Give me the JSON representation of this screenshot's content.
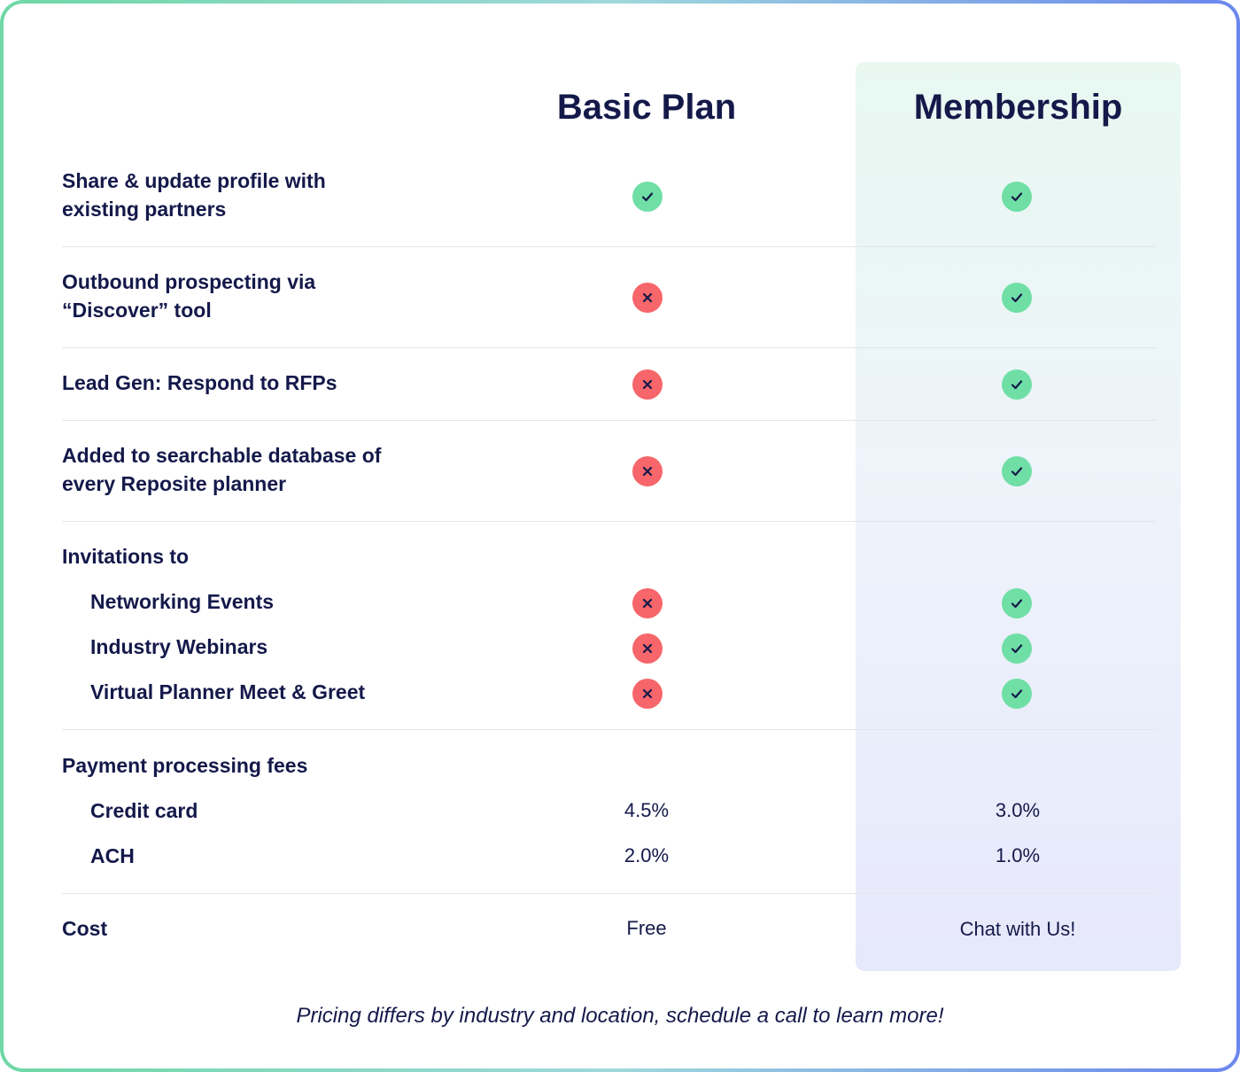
{
  "colors": {
    "check": "#70dfa5",
    "cross": "#f7666a",
    "text": "#14194a",
    "membership_bg_top": "#e8f8f1",
    "membership_bg_bottom": "#e6e8fb"
  },
  "columns": {
    "basic": "Basic Plan",
    "membership": "Membership"
  },
  "rows": {
    "share_profile": {
      "label_line1": "Share & update profile with",
      "label_line2": "existing partners",
      "basic": "check-icon",
      "membership": "check-icon"
    },
    "outbound": {
      "label_line1": "Outbound prospecting via",
      "label_line2": "“Discover” tool",
      "basic": "cross-icon",
      "membership": "check-icon"
    },
    "lead_gen": {
      "label": "Lead Gen: Respond to RFPs",
      "basic": "cross-icon",
      "membership": "check-icon"
    },
    "database": {
      "label_line1": "Added to searchable database of",
      "label_line2": "every Reposite planner",
      "basic": "cross-icon",
      "membership": "check-icon"
    },
    "invitations": {
      "label": "Invitations to",
      "items": [
        {
          "label": "Networking Events",
          "basic": "cross-icon",
          "membership": "check-icon"
        },
        {
          "label": "Industry Webinars",
          "basic": "cross-icon",
          "membership": "check-icon"
        },
        {
          "label": "Virtual Planner Meet & Greet",
          "basic": "cross-icon",
          "membership": "check-icon"
        }
      ]
    },
    "payment": {
      "label": "Payment processing fees",
      "items": [
        {
          "label": "Credit card",
          "basic": "4.5%",
          "membership": "3.0%"
        },
        {
          "label": "ACH",
          "basic": "2.0%",
          "membership": "1.0%"
        }
      ]
    },
    "cost": {
      "label": "Cost",
      "basic": "Free",
      "membership": "Chat with Us!"
    }
  },
  "footnote": "Pricing differs by industry and location, schedule a call to learn more!"
}
